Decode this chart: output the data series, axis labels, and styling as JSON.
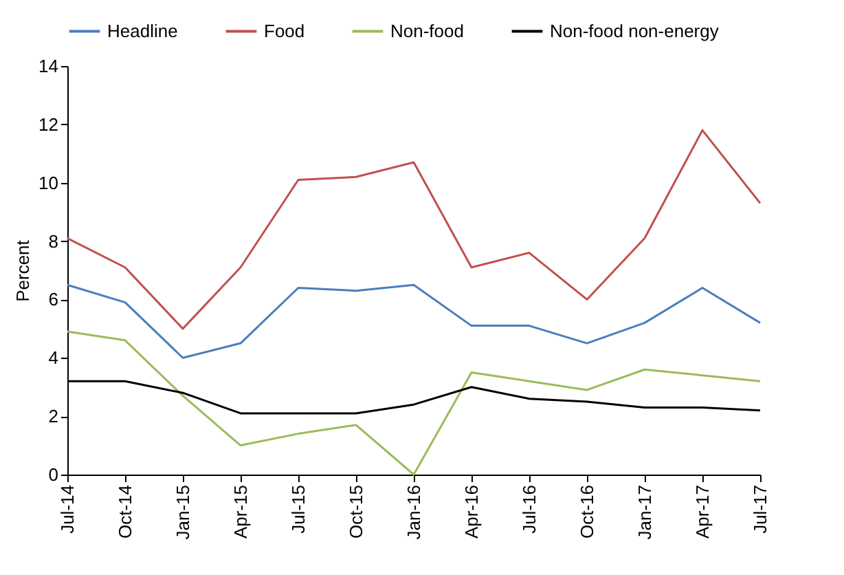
{
  "chart_data": {
    "type": "line",
    "ylabel": "Percent",
    "categories": [
      "Jul-14",
      "Oct-14",
      "Jan-15",
      "Apr-15",
      "Jul-15",
      "Oct-15",
      "Jan-16",
      "Apr-16",
      "Jul-16",
      "Oct-16",
      "Jan-17",
      "Apr-17",
      "Jul-17"
    ],
    "series": [
      {
        "name": "Headline",
        "color": "#4a7ebb",
        "values": [
          6.5,
          5.9,
          4.0,
          4.5,
          6.4,
          6.3,
          6.5,
          5.1,
          5.1,
          4.5,
          5.2,
          6.4,
          5.2
        ]
      },
      {
        "name": "Food",
        "color": "#c0504d",
        "values": [
          8.1,
          7.1,
          5.0,
          7.1,
          10.1,
          10.2,
          10.7,
          7.1,
          7.6,
          6.0,
          8.1,
          11.8,
          9.3
        ]
      },
      {
        "name": "Non-food",
        "color": "#9bbb59",
        "values": [
          4.9,
          4.6,
          2.7,
          1.0,
          1.4,
          1.7,
          0.0,
          3.5,
          3.2,
          2.9,
          3.6,
          3.4,
          3.2
        ]
      },
      {
        "name": "Non-food non-energy",
        "color": "#000000",
        "values": [
          3.2,
          3.2,
          2.8,
          2.1,
          2.1,
          2.1,
          2.4,
          3.0,
          2.6,
          2.5,
          2.3,
          2.3,
          2.2
        ]
      }
    ],
    "ylim": [
      0,
      14
    ],
    "yticks": [
      0,
      2,
      4,
      6,
      8,
      10,
      12,
      14
    ],
    "grid": false,
    "legend": "top",
    "marker": "none",
    "line_style": "solid"
  }
}
